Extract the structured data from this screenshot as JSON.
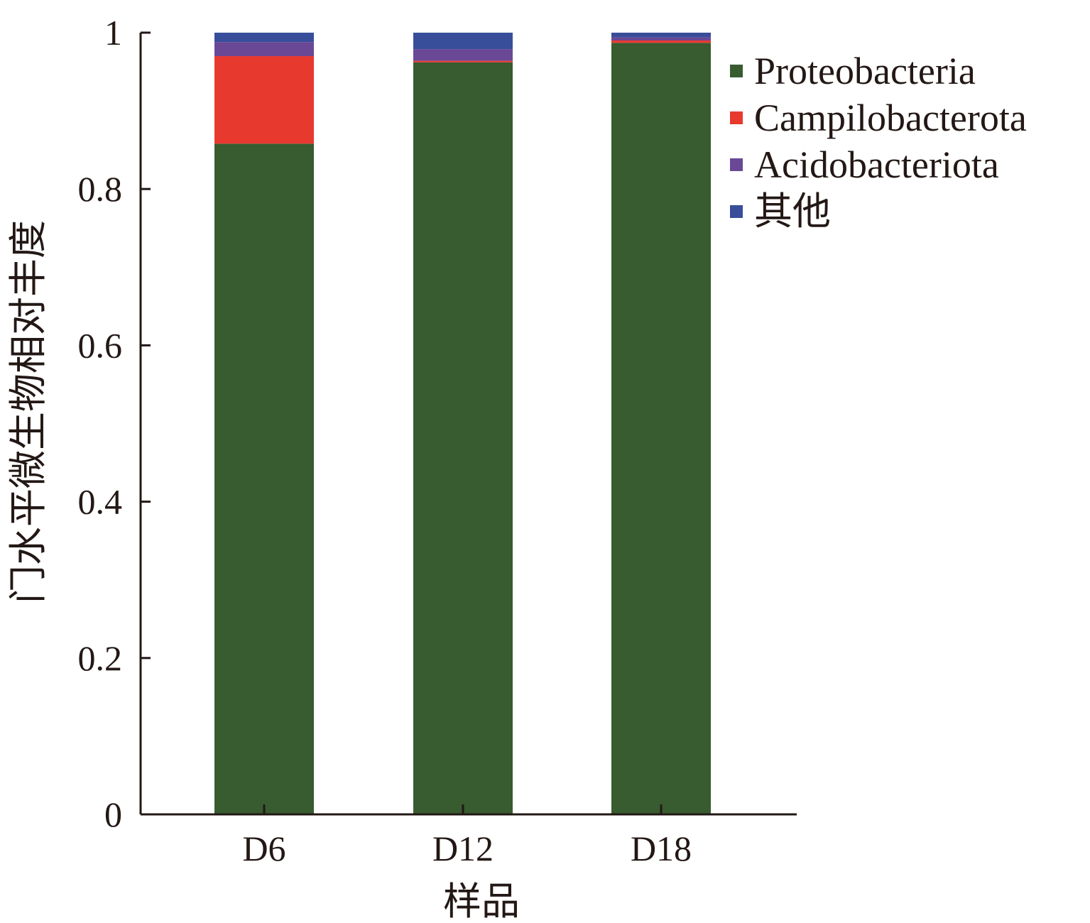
{
  "chart_data": {
    "type": "bar",
    "stacked": true,
    "categories": [
      "D6",
      "D12",
      "D18"
    ],
    "series": [
      {
        "name": "Proteobacteria",
        "color": "#385b2f",
        "values": [
          0.858,
          0.962,
          0.987
        ]
      },
      {
        "name": "Campilobacterota",
        "color": "#e8392f",
        "values": [
          0.112,
          0.002,
          0.003
        ]
      },
      {
        "name": "Acidobacteriota",
        "color": "#6a4896",
        "values": [
          0.018,
          0.015,
          0.004
        ]
      },
      {
        "name": "其他",
        "color": "#394e9a",
        "values": [
          0.012,
          0.021,
          0.006
        ]
      }
    ],
    "xlabel": "样品",
    "ylabel": "门水平微生物相对丰度",
    "ylim": [
      0,
      1
    ],
    "yticks": [
      0,
      0.2,
      0.4,
      0.6,
      0.8,
      1
    ],
    "ytick_labels": [
      "0",
      "0.2",
      "0.4",
      "0.6",
      "0.8",
      "1"
    ],
    "grid": false,
    "legend_position": "top-right"
  }
}
